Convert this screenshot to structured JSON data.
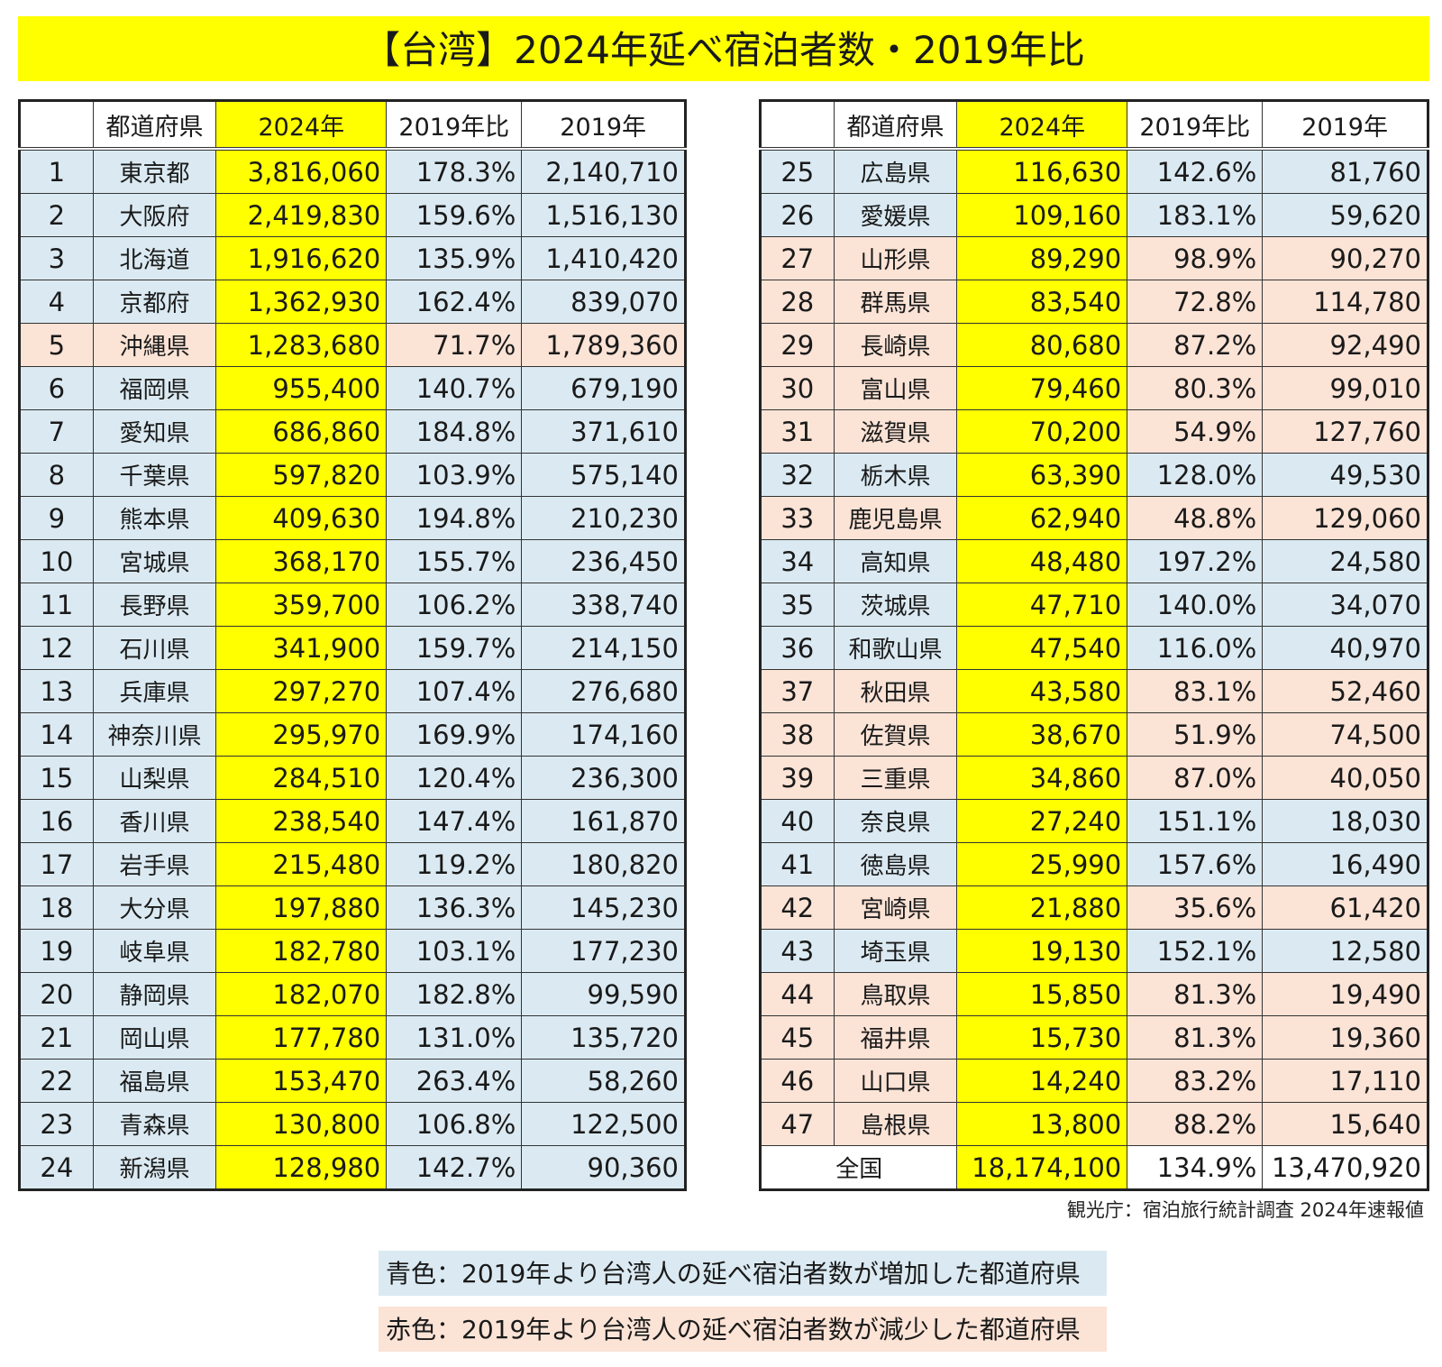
{
  "title": "【台湾】2024年延べ宿泊者数・2019年比",
  "headers": [
    "",
    "都道府県",
    "2024年",
    "2019年比",
    "2019年"
  ],
  "colors": {
    "increase": "#dbeaf2",
    "decrease": "#fbe3d6",
    "highlight": "#ffff00"
  },
  "rows": [
    {
      "rank": "1",
      "pref": "東京都",
      "y2024": "3,816,060",
      "ratio": "178.3%",
      "y2019": "2,140,710",
      "status": "up"
    },
    {
      "rank": "2",
      "pref": "大阪府",
      "y2024": "2,419,830",
      "ratio": "159.6%",
      "y2019": "1,516,130",
      "status": "up"
    },
    {
      "rank": "3",
      "pref": "北海道",
      "y2024": "1,916,620",
      "ratio": "135.9%",
      "y2019": "1,410,420",
      "status": "up"
    },
    {
      "rank": "4",
      "pref": "京都府",
      "y2024": "1,362,930",
      "ratio": "162.4%",
      "y2019": "839,070",
      "status": "up"
    },
    {
      "rank": "5",
      "pref": "沖縄県",
      "y2024": "1,283,680",
      "ratio": "71.7%",
      "y2019": "1,789,360",
      "status": "down"
    },
    {
      "rank": "6",
      "pref": "福岡県",
      "y2024": "955,400",
      "ratio": "140.7%",
      "y2019": "679,190",
      "status": "up"
    },
    {
      "rank": "7",
      "pref": "愛知県",
      "y2024": "686,860",
      "ratio": "184.8%",
      "y2019": "371,610",
      "status": "up"
    },
    {
      "rank": "8",
      "pref": "千葉県",
      "y2024": "597,820",
      "ratio": "103.9%",
      "y2019": "575,140",
      "status": "up"
    },
    {
      "rank": "9",
      "pref": "熊本県",
      "y2024": "409,630",
      "ratio": "194.8%",
      "y2019": "210,230",
      "status": "up"
    },
    {
      "rank": "10",
      "pref": "宮城県",
      "y2024": "368,170",
      "ratio": "155.7%",
      "y2019": "236,450",
      "status": "up"
    },
    {
      "rank": "11",
      "pref": "長野県",
      "y2024": "359,700",
      "ratio": "106.2%",
      "y2019": "338,740",
      "status": "up"
    },
    {
      "rank": "12",
      "pref": "石川県",
      "y2024": "341,900",
      "ratio": "159.7%",
      "y2019": "214,150",
      "status": "up"
    },
    {
      "rank": "13",
      "pref": "兵庫県",
      "y2024": "297,270",
      "ratio": "107.4%",
      "y2019": "276,680",
      "status": "up"
    },
    {
      "rank": "14",
      "pref": "神奈川県",
      "y2024": "295,970",
      "ratio": "169.9%",
      "y2019": "174,160",
      "status": "up"
    },
    {
      "rank": "15",
      "pref": "山梨県",
      "y2024": "284,510",
      "ratio": "120.4%",
      "y2019": "236,300",
      "status": "up"
    },
    {
      "rank": "16",
      "pref": "香川県",
      "y2024": "238,540",
      "ratio": "147.4%",
      "y2019": "161,870",
      "status": "up"
    },
    {
      "rank": "17",
      "pref": "岩手県",
      "y2024": "215,480",
      "ratio": "119.2%",
      "y2019": "180,820",
      "status": "up"
    },
    {
      "rank": "18",
      "pref": "大分県",
      "y2024": "197,880",
      "ratio": "136.3%",
      "y2019": "145,230",
      "status": "up"
    },
    {
      "rank": "19",
      "pref": "岐阜県",
      "y2024": "182,780",
      "ratio": "103.1%",
      "y2019": "177,230",
      "status": "up"
    },
    {
      "rank": "20",
      "pref": "静岡県",
      "y2024": "182,070",
      "ratio": "182.8%",
      "y2019": "99,590",
      "status": "up"
    },
    {
      "rank": "21",
      "pref": "岡山県",
      "y2024": "177,780",
      "ratio": "131.0%",
      "y2019": "135,720",
      "status": "up"
    },
    {
      "rank": "22",
      "pref": "福島県",
      "y2024": "153,470",
      "ratio": "263.4%",
      "y2019": "58,260",
      "status": "up"
    },
    {
      "rank": "23",
      "pref": "青森県",
      "y2024": "130,800",
      "ratio": "106.8%",
      "y2019": "122,500",
      "status": "up"
    },
    {
      "rank": "24",
      "pref": "新潟県",
      "y2024": "128,980",
      "ratio": "142.7%",
      "y2019": "90,360",
      "status": "up"
    },
    {
      "rank": "25",
      "pref": "広島県",
      "y2024": "116,630",
      "ratio": "142.6%",
      "y2019": "81,760",
      "status": "up"
    },
    {
      "rank": "26",
      "pref": "愛媛県",
      "y2024": "109,160",
      "ratio": "183.1%",
      "y2019": "59,620",
      "status": "up"
    },
    {
      "rank": "27",
      "pref": "山形県",
      "y2024": "89,290",
      "ratio": "98.9%",
      "y2019": "90,270",
      "status": "down"
    },
    {
      "rank": "28",
      "pref": "群馬県",
      "y2024": "83,540",
      "ratio": "72.8%",
      "y2019": "114,780",
      "status": "down"
    },
    {
      "rank": "29",
      "pref": "長崎県",
      "y2024": "80,680",
      "ratio": "87.2%",
      "y2019": "92,490",
      "status": "down"
    },
    {
      "rank": "30",
      "pref": "富山県",
      "y2024": "79,460",
      "ratio": "80.3%",
      "y2019": "99,010",
      "status": "down"
    },
    {
      "rank": "31",
      "pref": "滋賀県",
      "y2024": "70,200",
      "ratio": "54.9%",
      "y2019": "127,760",
      "status": "down"
    },
    {
      "rank": "32",
      "pref": "栃木県",
      "y2024": "63,390",
      "ratio": "128.0%",
      "y2019": "49,530",
      "status": "up"
    },
    {
      "rank": "33",
      "pref": "鹿児島県",
      "y2024": "62,940",
      "ratio": "48.8%",
      "y2019": "129,060",
      "status": "down"
    },
    {
      "rank": "34",
      "pref": "高知県",
      "y2024": "48,480",
      "ratio": "197.2%",
      "y2019": "24,580",
      "status": "up"
    },
    {
      "rank": "35",
      "pref": "茨城県",
      "y2024": "47,710",
      "ratio": "140.0%",
      "y2019": "34,070",
      "status": "up"
    },
    {
      "rank": "36",
      "pref": "和歌山県",
      "y2024": "47,540",
      "ratio": "116.0%",
      "y2019": "40,970",
      "status": "up"
    },
    {
      "rank": "37",
      "pref": "秋田県",
      "y2024": "43,580",
      "ratio": "83.1%",
      "y2019": "52,460",
      "status": "down"
    },
    {
      "rank": "38",
      "pref": "佐賀県",
      "y2024": "38,670",
      "ratio": "51.9%",
      "y2019": "74,500",
      "status": "down"
    },
    {
      "rank": "39",
      "pref": "三重県",
      "y2024": "34,860",
      "ratio": "87.0%",
      "y2019": "40,050",
      "status": "down"
    },
    {
      "rank": "40",
      "pref": "奈良県",
      "y2024": "27,240",
      "ratio": "151.1%",
      "y2019": "18,030",
      "status": "up"
    },
    {
      "rank": "41",
      "pref": "徳島県",
      "y2024": "25,990",
      "ratio": "157.6%",
      "y2019": "16,490",
      "status": "up"
    },
    {
      "rank": "42",
      "pref": "宮崎県",
      "y2024": "21,880",
      "ratio": "35.6%",
      "y2019": "61,420",
      "status": "down"
    },
    {
      "rank": "43",
      "pref": "埼玉県",
      "y2024": "19,130",
      "ratio": "152.1%",
      "y2019": "12,580",
      "status": "up"
    },
    {
      "rank": "44",
      "pref": "鳥取県",
      "y2024": "15,850",
      "ratio": "81.3%",
      "y2019": "19,490",
      "status": "down"
    },
    {
      "rank": "45",
      "pref": "福井県",
      "y2024": "15,730",
      "ratio": "81.3%",
      "y2019": "19,360",
      "status": "down"
    },
    {
      "rank": "46",
      "pref": "山口県",
      "y2024": "14,240",
      "ratio": "83.2%",
      "y2019": "17,110",
      "status": "down"
    },
    {
      "rank": "47",
      "pref": "島根県",
      "y2024": "13,800",
      "ratio": "88.2%",
      "y2019": "15,640",
      "status": "down"
    }
  ],
  "total": {
    "label": "全国",
    "y2024": "18,174,100",
    "ratio": "134.9%",
    "y2019": "13,470,920"
  },
  "source": "観光庁：宿泊旅行統計調査 2024年速報値",
  "legend": {
    "blue": "青色：2019年より台湾人の延べ宿泊者数が増加した都道府県",
    "red": "赤色：2019年より台湾人の延べ宿泊者数が減少した都道府県"
  }
}
